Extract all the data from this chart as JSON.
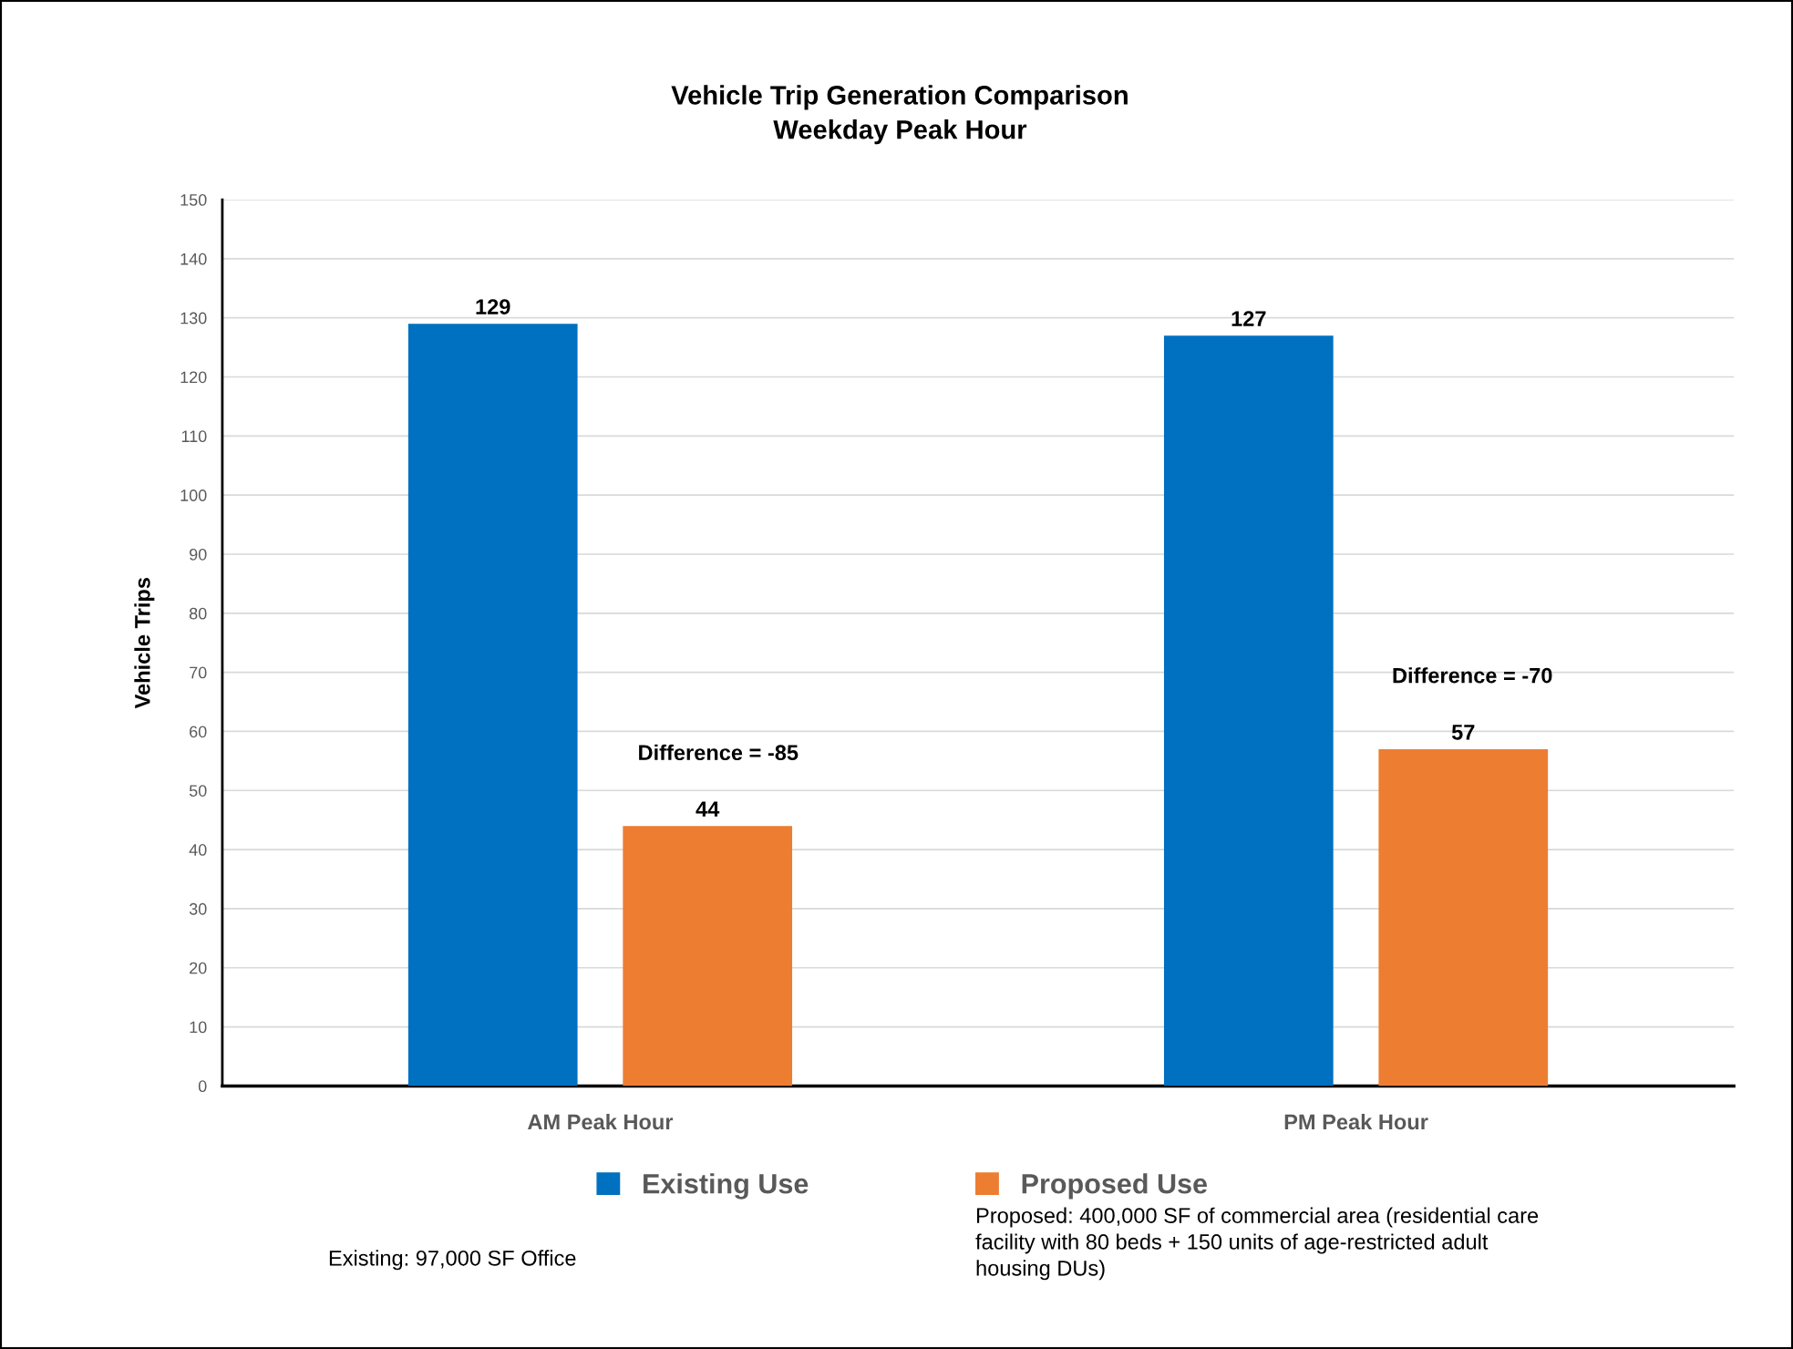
{
  "chart_data": {
    "type": "bar",
    "title": "Vehicle Trip Generation Comparison\nWeekday Peak Hour",
    "ylabel": "Vehicle Trips",
    "categories": [
      "AM Peak Hour",
      "PM Peak Hour"
    ],
    "series": [
      {
        "name": "Existing Use",
        "color": "#0070c0",
        "values": [
          129,
          127
        ]
      },
      {
        "name": "Proposed Use",
        "color": "#ed7d31",
        "values": [
          44,
          57
        ]
      }
    ],
    "ylim": [
      0,
      150
    ],
    "yticks": [
      0,
      10,
      20,
      30,
      40,
      50,
      60,
      70,
      80,
      90,
      100,
      110,
      120,
      130,
      140,
      150
    ],
    "grid": "y",
    "legend": "bottom",
    "data_labels": true,
    "annotations": [
      "Difference = -85",
      "Difference = -70",
      "Existing: 97,000 SF Office",
      "Proposed: 400,000 SF of commercial area (residential care\nfacility with 80 beds + 150 units of age-restricted adult\nhousing DUs)"
    ]
  }
}
